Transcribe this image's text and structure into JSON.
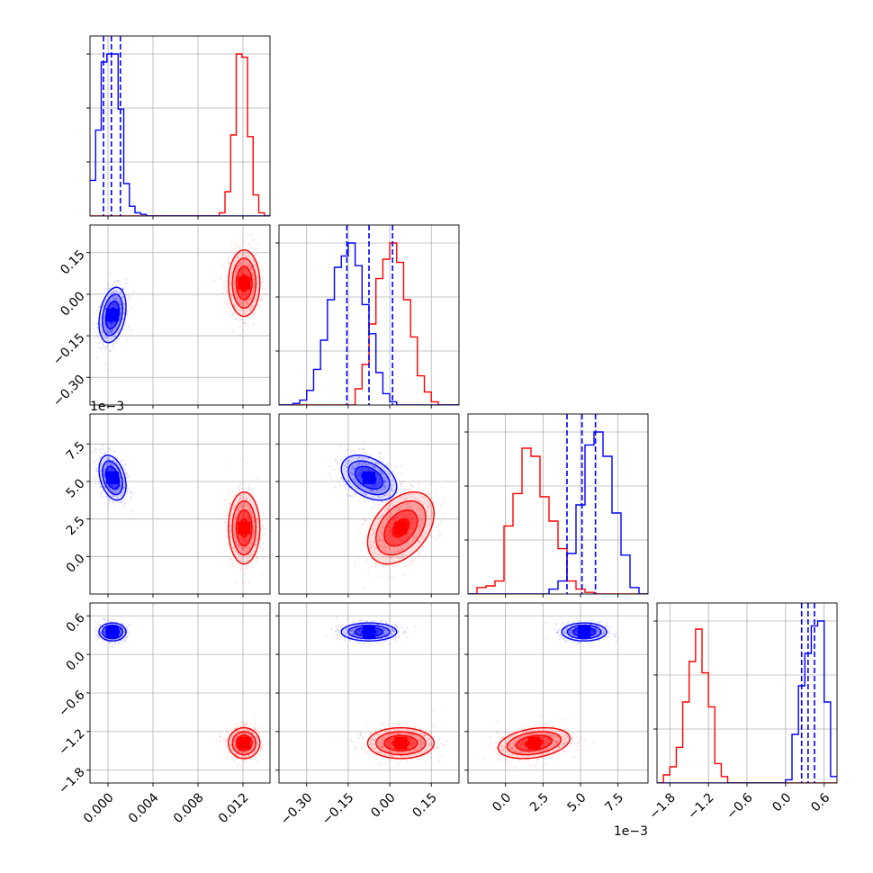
{
  "chart_data": {
    "type": "corner",
    "series": [
      {
        "name": "",
        "color": "#0000ff",
        "mean": [
          0.0004,
          -0.075,
          0.00525,
          0.35
        ],
        "std": [
          0.0006,
          0.05,
          0.00075,
          0.07
        ],
        "corr": [
          [
            1,
            0.3,
            -0.35,
            0
          ],
          [
            0.3,
            1,
            -0.4,
            0
          ],
          [
            -0.35,
            -0.4,
            1,
            0
          ],
          [
            0,
            0,
            0,
            1
          ]
        ],
        "quantiles": [
          [
            -0.0004,
            0.0003,
            0.0011
          ],
          [
            -0.155,
            -0.075,
            0.01
          ],
          [
            0.0041,
            0.0051,
            0.006
          ],
          [
            0.25,
            0.35,
            0.45
          ]
        ]
      },
      {
        "name": "",
        "color": "#ff0000",
        "mean": [
          0.0121,
          0.04,
          0.0019,
          -1.38
        ],
        "std": [
          0.0007,
          0.06,
          0.0012,
          0.12
        ],
        "corr": [
          [
            1,
            0,
            0,
            0
          ],
          [
            0,
            1,
            0.4,
            0
          ],
          [
            0,
            0.4,
            1,
            0.3
          ],
          [
            0,
            0,
            0.3,
            1
          ]
        ],
        "quantiles": []
      }
    ],
    "histograms": [
      {
        "bin_edges": [
          -0.0016,
          -0.0011,
          -0.0006,
          -0.0001,
          0.0004,
          0.0009,
          0.0014,
          0.0019,
          0.0024,
          0.0029,
          0.0034,
          0.0039,
          0.0044,
          0.0049,
          0.0054,
          0.0059,
          0.0064,
          0.0069,
          0.0074,
          0.0079,
          0.0084,
          0.0089,
          0.0094,
          0.0099,
          0.0104,
          0.0109,
          0.0114,
          0.0119,
          0.0124,
          0.0129,
          0.0134,
          0.0139,
          0.0144
        ],
        "counts": [
          [
            0.22,
            0.53,
            0.95,
            1.0,
            1.0,
            0.66,
            0.2,
            0.06,
            0.02,
            0.01,
            0,
            0,
            0,
            0,
            0,
            0,
            0,
            0,
            0,
            0,
            0,
            0,
            0,
            0,
            0,
            0,
            0,
            0,
            0,
            0,
            0,
            0
          ],
          [
            0,
            0,
            0,
            0,
            0,
            0,
            0,
            0,
            0,
            0,
            0,
            0,
            0,
            0,
            0,
            0,
            0,
            0,
            0,
            0,
            0,
            0,
            0,
            0.02,
            0.15,
            0.5,
            1.0,
            0.98,
            0.49,
            0.13,
            0.02,
            0
          ]
        ]
      },
      {
        "bin_edges": [
          -0.4,
          -0.375,
          -0.35,
          -0.325,
          -0.3,
          -0.275,
          -0.25,
          -0.225,
          -0.2,
          -0.175,
          -0.15,
          -0.125,
          -0.1,
          -0.075,
          -0.05,
          -0.025,
          0.0,
          0.025,
          0.05,
          0.075,
          0.1,
          0.125,
          0.15,
          0.175,
          0.2,
          0.225,
          0.25
        ],
        "counts": [
          [
            0,
            0,
            0.01,
            0.03,
            0.09,
            0.22,
            0.4,
            0.65,
            0.85,
            0.92,
            1.0,
            0.86,
            0.62,
            0.44,
            0.2,
            0.07,
            0.02,
            0,
            0,
            0,
            0,
            0,
            0,
            0,
            0,
            0
          ],
          [
            0,
            0,
            0,
            0,
            0,
            0,
            0,
            0,
            0,
            0,
            0,
            0.1,
            0.25,
            0.5,
            0.78,
            0.9,
            1.0,
            0.88,
            0.65,
            0.42,
            0.18,
            0.08,
            0.02,
            0,
            0,
            0
          ]
        ]
      },
      {
        "bin_edges": [
          -0.0025,
          -0.0019,
          -0.0013,
          -0.0007,
          -0.0001,
          0.0005,
          0.0011,
          0.0017,
          0.0023,
          0.0029,
          0.0035,
          0.0041,
          0.0047,
          0.0053,
          0.0059,
          0.0065,
          0.0071,
          0.0077,
          0.0083,
          0.0089,
          0.0095
        ],
        "counts": [
          [
            0,
            0,
            0,
            0,
            0,
            0,
            0,
            0,
            0,
            0.03,
            0.08,
            0.25,
            0.55,
            0.92,
            1.0,
            0.85,
            0.5,
            0.24,
            0.04,
            0
          ],
          [
            0,
            0.04,
            0.05,
            0.08,
            0.42,
            0.62,
            0.9,
            0.85,
            0.6,
            0.45,
            0.28,
            0.08,
            0.03,
            0.01,
            0,
            0,
            0,
            0,
            0,
            0
          ]
        ]
      },
      {
        "bin_edges": [
          -2.0,
          -1.9,
          -1.8,
          -1.7,
          -1.6,
          -1.5,
          -1.4,
          -1.3,
          -1.2,
          -1.1,
          -1.0,
          -0.9,
          -0.8,
          -0.7,
          -0.6,
          -0.5,
          -0.4,
          -0.3,
          -0.2,
          -0.1,
          0.0,
          0.1,
          0.2,
          0.3,
          0.4,
          0.5,
          0.6,
          0.7,
          0.8
        ],
        "counts": [
          [
            0,
            0,
            0,
            0,
            0,
            0,
            0,
            0,
            0,
            0,
            0,
            0,
            0,
            0,
            0,
            0,
            0,
            0,
            0,
            0,
            0.02,
            0.3,
            0.6,
            0.8,
            0.97,
            1.0,
            0.5,
            0.04
          ],
          [
            0,
            0.05,
            0.1,
            0.22,
            0.5,
            0.75,
            0.95,
            0.68,
            0.47,
            0.12,
            0.04,
            0,
            0,
            0,
            0,
            0,
            0,
            0,
            0,
            0,
            0,
            0,
            0,
            0,
            0,
            0,
            0,
            0
          ]
        ]
      }
    ],
    "axes": [
      {
        "range": [
          -0.0016,
          0.0144
        ],
        "ticks": [
          0.0,
          0.004,
          0.008,
          0.012
        ],
        "tick_labels": [
          "0.000",
          "0.004",
          "0.008",
          "0.012"
        ],
        "offset_text": ""
      },
      {
        "range": [
          -0.4,
          0.25
        ],
        "ticks": [
          -0.3,
          -0.15,
          0.0,
          0.15
        ],
        "tick_labels": [
          "−0.30",
          "−0.15",
          "0.00",
          "0.15"
        ],
        "offset_text": ""
      },
      {
        "range": [
          -0.0025,
          0.0095
        ],
        "ticks": [
          0.0,
          0.0025,
          0.005,
          0.0075
        ],
        "tick_labels": [
          "0.0",
          "2.5",
          "5.0",
          "7.5"
        ],
        "offset_text": "1e−3"
      },
      {
        "range": [
          -2.0,
          0.8
        ],
        "ticks": [
          -1.8,
          -1.2,
          -0.6,
          0.0,
          0.6
        ],
        "tick_labels": [
          "−1.8",
          "−1.2",
          "−0.6",
          "0.0",
          "0.6"
        ],
        "offset_text": ""
      }
    ],
    "title": "",
    "grid": true,
    "legend": "none"
  }
}
